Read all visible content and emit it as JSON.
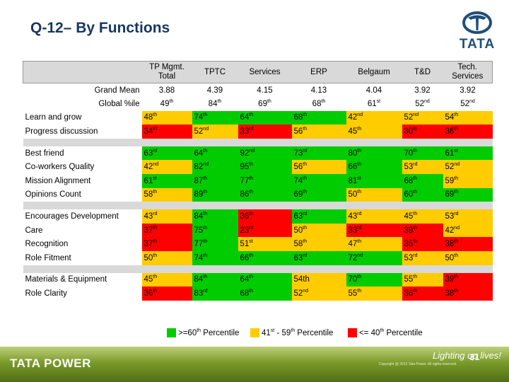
{
  "title": "Q-12– By Functions",
  "logo": {
    "text": "TATA",
    "icon": "tata-logo-icon"
  },
  "columns": [
    "TP Mgmt. Total",
    "TPTC",
    "Services",
    "ERP",
    "Belgaum",
    "T&D",
    "Tech. Services"
  ],
  "colors": {
    "green": "#00cc00",
    "yellow": "#ffcc00",
    "red": "#ff0000",
    "shade": "#d9d9d9"
  },
  "groups": [
    [
      {
        "label": "Grand Mean",
        "align": "right",
        "cells": [
          {
            "v": "3.88",
            "s": "",
            "c": ""
          },
          {
            "v": "4.39",
            "s": "",
            "c": ""
          },
          {
            "v": "4.15",
            "s": "",
            "c": ""
          },
          {
            "v": "4.13",
            "s": "",
            "c": ""
          },
          {
            "v": "4.04",
            "s": "",
            "c": ""
          },
          {
            "v": "3.92",
            "s": "",
            "c": ""
          },
          {
            "v": "3.92",
            "s": "",
            "c": ""
          }
        ]
      },
      {
        "label": "Global %ile",
        "align": "right",
        "cells": [
          {
            "v": "49",
            "s": "th",
            "c": ""
          },
          {
            "v": "84",
            "s": "th",
            "c": ""
          },
          {
            "v": "69",
            "s": "th",
            "c": ""
          },
          {
            "v": "68",
            "s": "th",
            "c": ""
          },
          {
            "v": "61",
            "s": "st",
            "c": ""
          },
          {
            "v": "52",
            "s": "nd",
            "c": ""
          },
          {
            "v": "52",
            "s": "nd",
            "c": ""
          }
        ]
      }
    ],
    [
      {
        "label": "Learn and grow",
        "align": "left",
        "cells": [
          {
            "v": "48",
            "s": "th",
            "c": "yellow"
          },
          {
            "v": "74",
            "s": "th",
            "c": "green"
          },
          {
            "v": "64",
            "s": "th",
            "c": "green"
          },
          {
            "v": "68",
            "s": "th",
            "c": "green"
          },
          {
            "v": "42",
            "s": "nd",
            "c": "yellow"
          },
          {
            "v": "52",
            "s": "nd",
            "c": "yellow"
          },
          {
            "v": "54",
            "s": "th",
            "c": "yellow"
          }
        ]
      },
      {
        "label": "Progress discussion",
        "align": "left",
        "cells": [
          {
            "v": "34",
            "s": "th",
            "c": "red"
          },
          {
            "v": "52",
            "s": "nd",
            "c": "yellow"
          },
          {
            "v": "33",
            "s": "rd",
            "c": "red"
          },
          {
            "v": "56",
            "s": "th",
            "c": "yellow"
          },
          {
            "v": "45",
            "s": "th",
            "c": "yellow"
          },
          {
            "v": "30",
            "s": "th",
            "c": "red"
          },
          {
            "v": "36",
            "s": "th",
            "c": "red"
          }
        ]
      }
    ],
    [
      {
        "label": "Best friend",
        "align": "left",
        "cells": [
          {
            "v": "63",
            "s": "rd",
            "c": "green"
          },
          {
            "v": "64",
            "s": "th",
            "c": "green"
          },
          {
            "v": "92",
            "s": "nd",
            "c": "green"
          },
          {
            "v": "73",
            "s": "rd",
            "c": "green"
          },
          {
            "v": "80",
            "s": "th",
            "c": "green"
          },
          {
            "v": "70",
            "s": "th",
            "c": "green"
          },
          {
            "v": "61",
            "s": "st",
            "c": "green"
          }
        ]
      },
      {
        "label": "Co-workers Quality",
        "align": "left",
        "cells": [
          {
            "v": "42",
            "s": "nd",
            "c": "yellow"
          },
          {
            "v": "82",
            "s": "nd",
            "c": "green"
          },
          {
            "v": "95",
            "s": "th",
            "c": "green"
          },
          {
            "v": "56",
            "s": "th",
            "c": "yellow"
          },
          {
            "v": "66",
            "s": "th",
            "c": "green"
          },
          {
            "v": "53",
            "s": "rd",
            "c": "yellow"
          },
          {
            "v": "52",
            "s": "nd",
            "c": "yellow"
          }
        ]
      },
      {
        "label": "Mission Alignment",
        "align": "left",
        "cells": [
          {
            "v": "61",
            "s": "st",
            "c": "green"
          },
          {
            "v": "87",
            "s": "th",
            "c": "green"
          },
          {
            "v": "77",
            "s": "th",
            "c": "green"
          },
          {
            "v": "74",
            "s": "th",
            "c": "green"
          },
          {
            "v": "81",
            "s": "st",
            "c": "green"
          },
          {
            "v": "68",
            "s": "th",
            "c": "green"
          },
          {
            "v": "59",
            "s": "th",
            "c": "yellow"
          }
        ]
      },
      {
        "label": "Opinions Count",
        "align": "left",
        "cells": [
          {
            "v": "58",
            "s": "th",
            "c": "yellow"
          },
          {
            "v": "89",
            "s": "th",
            "c": "green"
          },
          {
            "v": "86",
            "s": "th",
            "c": "green"
          },
          {
            "v": "69",
            "s": "th",
            "c": "green"
          },
          {
            "v": "50",
            "s": "th",
            "c": "yellow"
          },
          {
            "v": "60",
            "s": "th",
            "c": "green"
          },
          {
            "v": "69",
            "s": "th",
            "c": "green"
          }
        ]
      }
    ],
    [
      {
        "label": "Encourages Development",
        "align": "left",
        "cells": [
          {
            "v": "43",
            "s": "rd",
            "c": "yellow"
          },
          {
            "v": "84",
            "s": "th",
            "c": "green"
          },
          {
            "v": "36",
            "s": "th",
            "c": "red"
          },
          {
            "v": "63",
            "s": "rd",
            "c": "green"
          },
          {
            "v": "43",
            "s": "rd",
            "c": "yellow"
          },
          {
            "v": "45",
            "s": "th",
            "c": "yellow"
          },
          {
            "v": "53",
            "s": "rd",
            "c": "yellow"
          }
        ]
      },
      {
        "label": "Care",
        "align": "left",
        "cells": [
          {
            "v": "37",
            "s": "th",
            "c": "red"
          },
          {
            "v": "75",
            "s": "th",
            "c": "green"
          },
          {
            "v": "23",
            "s": "rd",
            "c": "red"
          },
          {
            "v": "50",
            "s": "th",
            "c": "yellow"
          },
          {
            "v": "33",
            "s": "rd",
            "c": "red"
          },
          {
            "v": "39",
            "s": "th",
            "c": "red"
          },
          {
            "v": "42",
            "s": "nd",
            "c": "yellow"
          }
        ]
      },
      {
        "label": "Recognition",
        "align": "left",
        "cells": [
          {
            "v": "37",
            "s": "th",
            "c": "red"
          },
          {
            "v": "77",
            "s": "th",
            "c": "green"
          },
          {
            "v": "51",
            "s": "st",
            "c": "yellow"
          },
          {
            "v": "58",
            "s": "th",
            "c": "yellow"
          },
          {
            "v": "47",
            "s": "th",
            "c": "yellow"
          },
          {
            "v": "35",
            "s": "th",
            "c": "red"
          },
          {
            "v": "38",
            "s": "th",
            "c": "red"
          }
        ]
      },
      {
        "label": "Role Fitment",
        "align": "left",
        "cells": [
          {
            "v": "50",
            "s": "th",
            "c": "yellow"
          },
          {
            "v": "74",
            "s": "th",
            "c": "green"
          },
          {
            "v": "66",
            "s": "th",
            "c": "green"
          },
          {
            "v": "63",
            "s": "rd",
            "c": "green"
          },
          {
            "v": "72",
            "s": "nd",
            "c": "green"
          },
          {
            "v": "53",
            "s": "rd",
            "c": "yellow"
          },
          {
            "v": "50",
            "s": "th",
            "c": "yellow"
          }
        ]
      }
    ],
    [
      {
        "label": "Materials & Equipment",
        "align": "left",
        "cells": [
          {
            "v": "45",
            "s": "th",
            "c": "yellow"
          },
          {
            "v": "84",
            "s": "th",
            "c": "green"
          },
          {
            "v": "64",
            "s": "th",
            "c": "green"
          },
          {
            "v": "54th",
            "s": "",
            "c": "yellow"
          },
          {
            "v": "70",
            "s": "th",
            "c": "green"
          },
          {
            "v": "55",
            "s": "th",
            "c": "yellow"
          },
          {
            "v": "39",
            "s": "th",
            "c": "red"
          }
        ]
      },
      {
        "label": "Role Clarity",
        "align": "left",
        "cells": [
          {
            "v": "36",
            "s": "th",
            "c": "red"
          },
          {
            "v": "83",
            "s": "rd",
            "c": "green"
          },
          {
            "v": "68",
            "s": "th",
            "c": "green"
          },
          {
            "v": "52",
            "s": "nd",
            "c": "yellow"
          },
          {
            "v": "55",
            "s": "th",
            "c": "yellow"
          },
          {
            "v": "36",
            "s": "th",
            "c": "red"
          },
          {
            "v": "38",
            "s": "th",
            "c": "red"
          }
        ]
      }
    ]
  ],
  "legend": [
    {
      "color": "green",
      "pre": ">=60",
      "sup": "th",
      "post": " Percentile"
    },
    {
      "color": "yellow",
      "pre": "41",
      "sup": "st",
      "post": " - 59",
      "sup2": "th",
      "post2": " Percentile"
    },
    {
      "color": "red",
      "pre": "<= 40",
      "sup": "th",
      "post": " Percentile"
    }
  ],
  "footer": {
    "brand": "TATA POWER",
    "tagline": "Lighting up lives!",
    "copyright": "Copyright @ 2012 Tata Power. All rights reserved.",
    "page_number": "31"
  }
}
